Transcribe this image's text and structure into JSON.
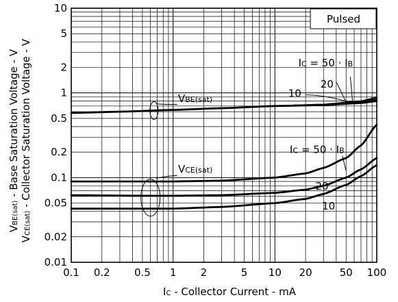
{
  "chart_data": {
    "type": "line",
    "xscale": "log",
    "yscale": "log",
    "xlim": [
      0.1,
      100
    ],
    "ylim": [
      0.01,
      10
    ],
    "grid": true,
    "xlabel": "I C - Collector Current - mA",
    "xlabel_parts": {
      "main": "I",
      "sub": "C",
      "rest": " - Collector Current - mA"
    },
    "ylabel_line1": {
      "main": "V",
      "sub": "BE(sat)",
      "rest": " - Base Saturation Voltage - V"
    },
    "ylabel_line2": {
      "main": "V",
      "sub": "CE(sat)",
      "rest": " - Collector Saturation Voltage - V"
    },
    "xticks": [
      {
        "value": 0.1,
        "label": "0.1"
      },
      {
        "value": 0.2,
        "label": "0.2"
      },
      {
        "value": 0.5,
        "label": "0.5"
      },
      {
        "value": 1,
        "label": "1"
      },
      {
        "value": 2,
        "label": "2"
      },
      {
        "value": 5,
        "label": "5"
      },
      {
        "value": 10,
        "label": "10"
      },
      {
        "value": 20,
        "label": "20"
      },
      {
        "value": 50,
        "label": "50"
      },
      {
        "value": 100,
        "label": "100"
      }
    ],
    "yticks": [
      {
        "value": 10,
        "label": "10"
      },
      {
        "value": 5,
        "label": "5"
      },
      {
        "value": 2,
        "label": "2"
      },
      {
        "value": 1,
        "label": "1"
      },
      {
        "value": 0.5,
        "label": "0.5"
      },
      {
        "value": 0.2,
        "label": "0.2"
      },
      {
        "value": 0.1,
        "label": "0.1"
      },
      {
        "value": 0.05,
        "label": "0.05"
      },
      {
        "value": 0.02,
        "label": "0.02"
      },
      {
        "value": 0.01,
        "label": "0.01"
      }
    ],
    "legend": "Pulsed",
    "vbe_label": {
      "main": "V",
      "sub": "BE(sat)"
    },
    "vce_label": {
      "main": "V",
      "sub": "CE(sat)"
    },
    "vbe_condition": {
      "ic": "I",
      "ic_sub": "C",
      "mid": " = 50 · ",
      "ib": "I",
      "ib_sub": "B"
    },
    "vce_condition": {
      "ic": "I",
      "ic_sub": "C",
      "mid": " = 50 · ",
      "ib": "I",
      "ib_sub": "B"
    },
    "vbe_ratio_labels": [
      "10",
      "20"
    ],
    "vce_ratio_labels": [
      "20",
      "10"
    ],
    "series": [
      {
        "group": "VBE(sat)",
        "ratio": 50,
        "x": [
          0.1,
          0.3,
          1,
          3,
          10,
          30,
          70,
          100
        ],
        "y": [
          0.58,
          0.6,
          0.63,
          0.66,
          0.7,
          0.72,
          0.76,
          0.8
        ]
      },
      {
        "group": "VBE(sat)",
        "ratio": 20,
        "x": [
          0.1,
          0.3,
          1,
          3,
          10,
          30,
          70,
          100
        ],
        "y": [
          0.58,
          0.6,
          0.63,
          0.66,
          0.7,
          0.72,
          0.78,
          0.84
        ]
      },
      {
        "group": "VBE(sat)",
        "ratio": 10,
        "x": [
          0.1,
          0.3,
          1,
          3,
          10,
          30,
          70,
          100
        ],
        "y": [
          0.58,
          0.6,
          0.63,
          0.66,
          0.7,
          0.73,
          0.8,
          0.88
        ]
      },
      {
        "group": "VCE(sat)",
        "ratio": 50,
        "x": [
          0.1,
          0.5,
          1,
          3,
          10,
          20,
          30,
          50,
          70,
          100
        ],
        "y": [
          0.09,
          0.09,
          0.09,
          0.092,
          0.1,
          0.112,
          0.13,
          0.17,
          0.24,
          0.42
        ]
      },
      {
        "group": "VCE(sat)",
        "ratio": 20,
        "x": [
          0.1,
          0.5,
          1,
          3,
          10,
          20,
          30,
          50,
          70,
          100
        ],
        "y": [
          0.062,
          0.061,
          0.061,
          0.062,
          0.066,
          0.072,
          0.08,
          0.1,
          0.125,
          0.17
        ]
      },
      {
        "group": "VCE(sat)",
        "ratio": 10,
        "x": [
          0.1,
          0.5,
          1,
          3,
          10,
          20,
          30,
          50,
          70,
          100
        ],
        "y": [
          0.043,
          0.043,
          0.043,
          0.045,
          0.05,
          0.056,
          0.064,
          0.082,
          0.104,
          0.14
        ]
      }
    ]
  }
}
